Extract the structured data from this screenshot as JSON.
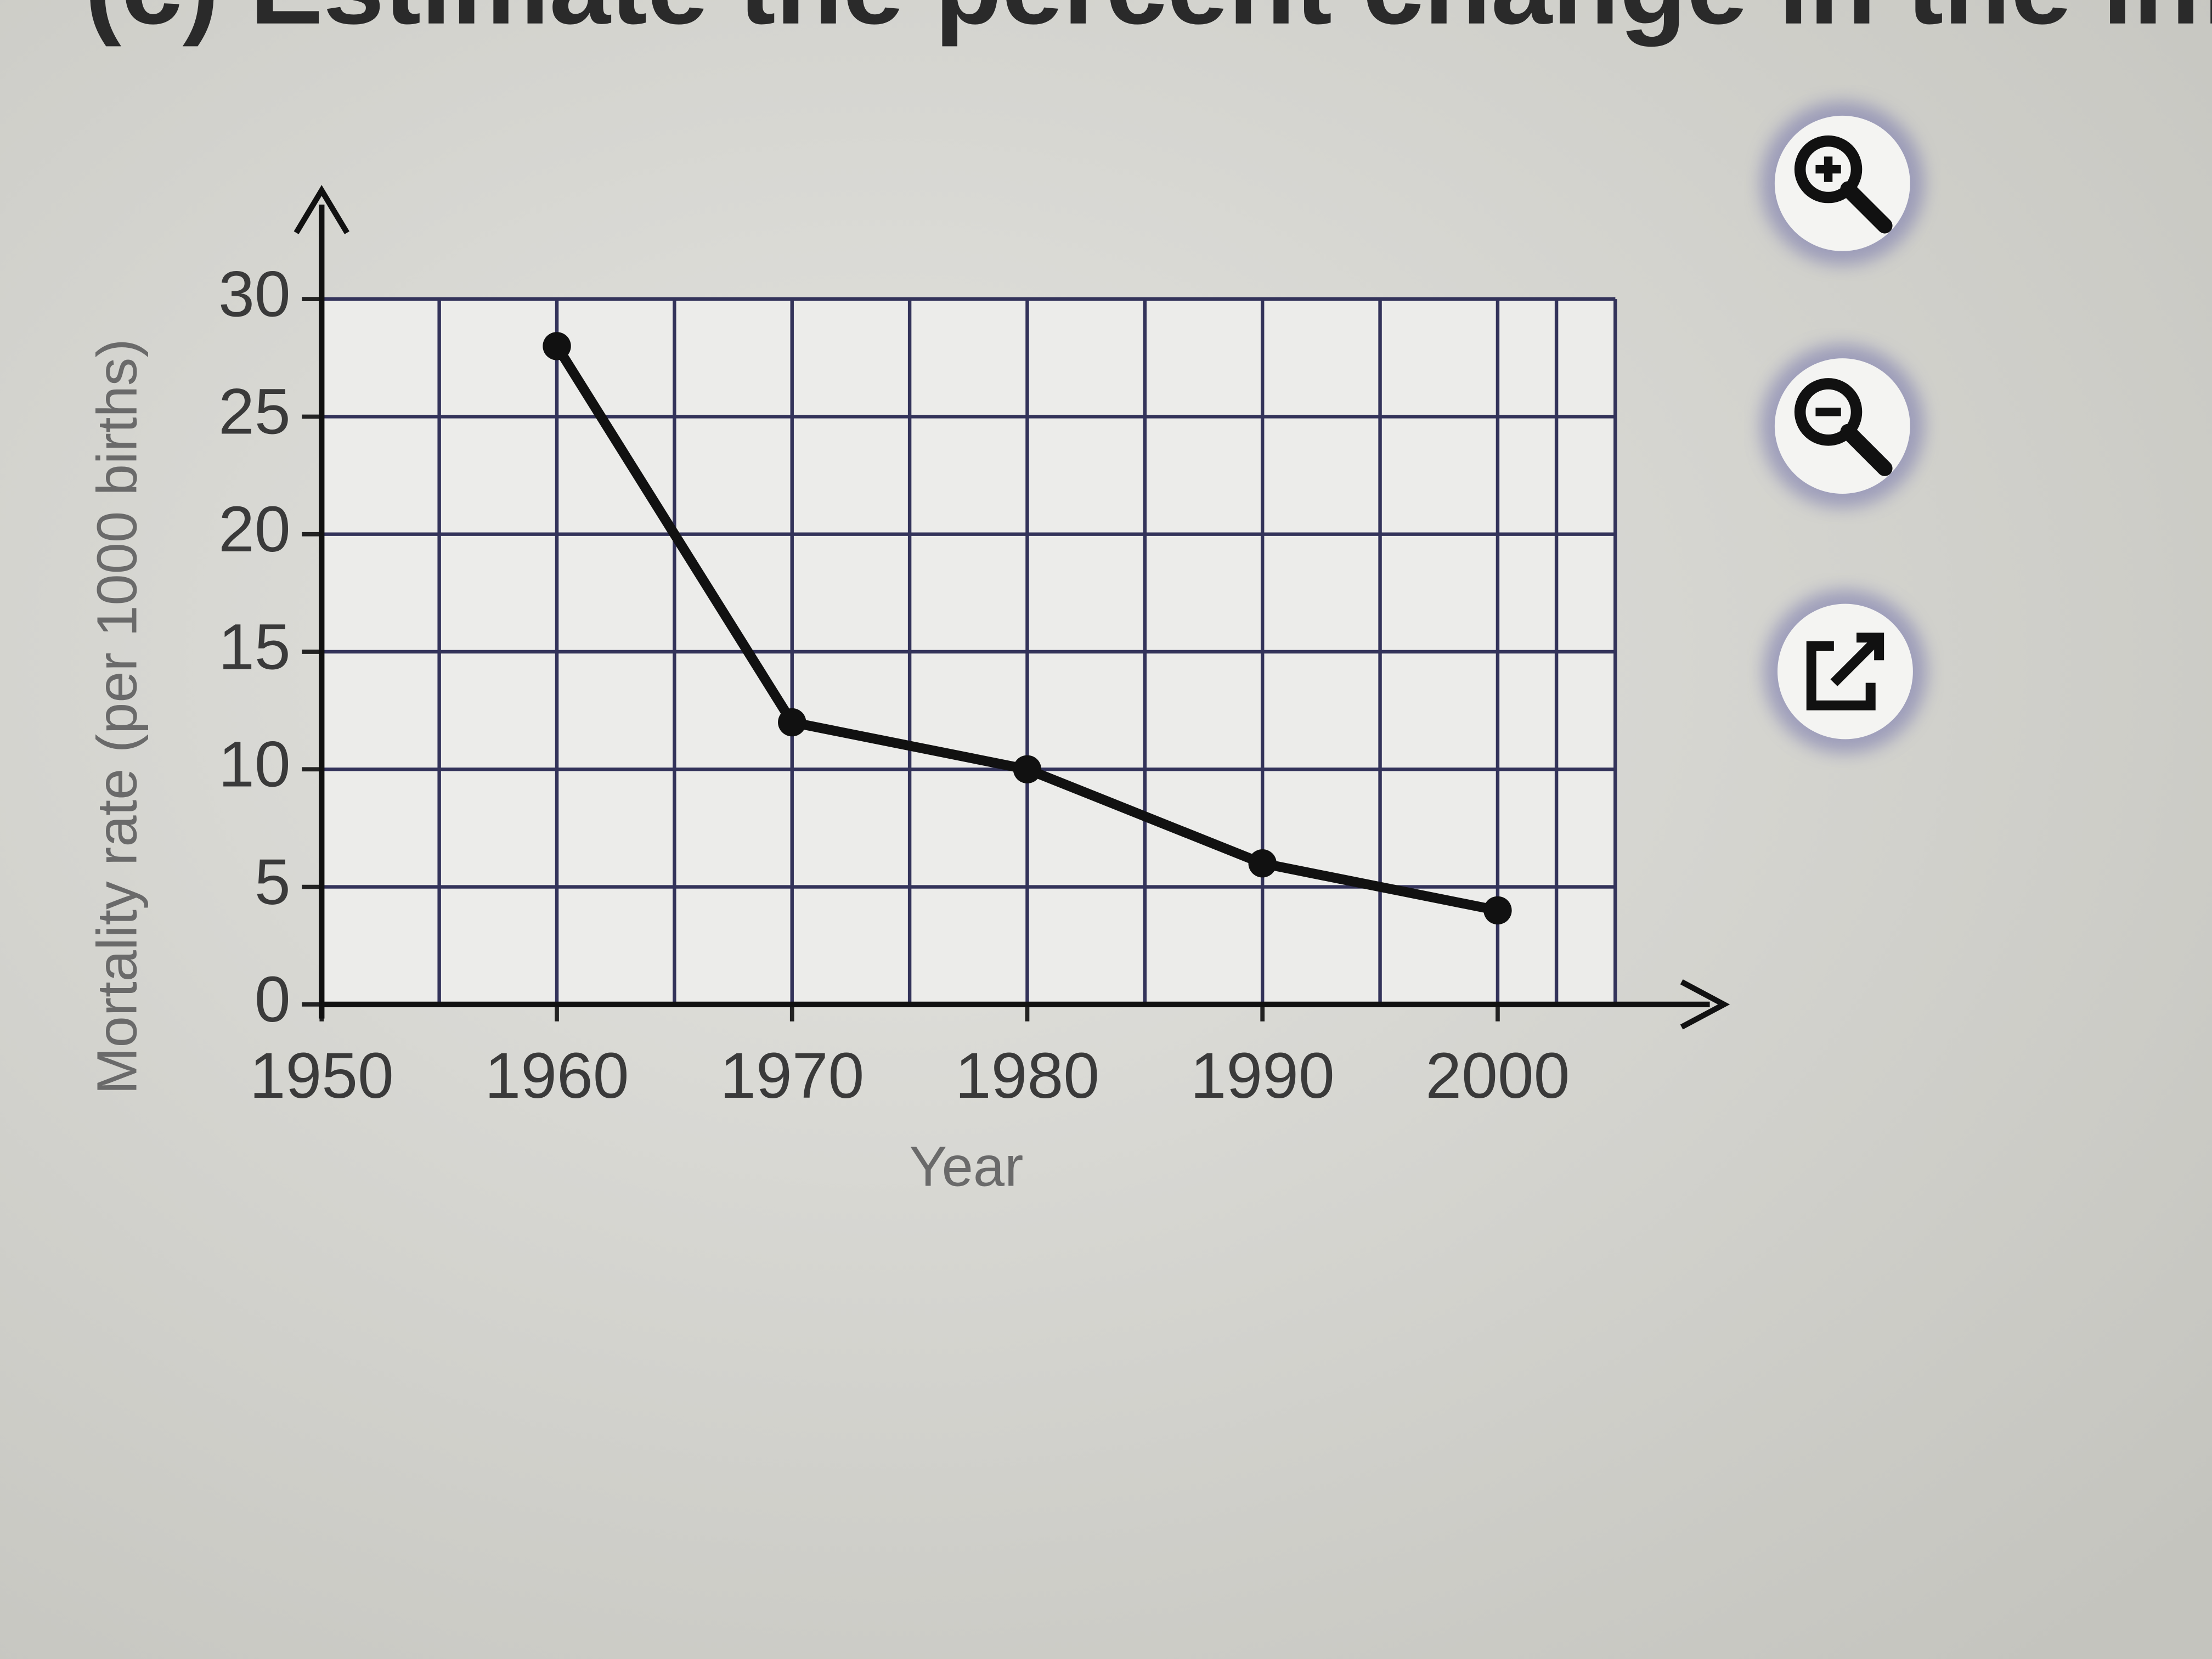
{
  "header": "(c) Estimate the percent change in the infant mortali",
  "chart_data": {
    "type": "line",
    "x_label": "Year",
    "y_label": "Mortality rate (per 1000 births)",
    "x": [
      1960,
      1970,
      1980,
      1990,
      2000
    ],
    "series": [
      {
        "color": "#111111",
        "values": [
          28,
          12,
          10,
          6,
          4
        ]
      }
    ],
    "xlim": [
      1950,
      2005
    ],
    "xticks": [
      1950,
      1960,
      1970,
      1980,
      1990,
      2000
    ],
    "ylim": [
      0,
      30
    ],
    "yticks": [
      0,
      5,
      10,
      15,
      20,
      25,
      30
    ],
    "grid": true
  }
}
